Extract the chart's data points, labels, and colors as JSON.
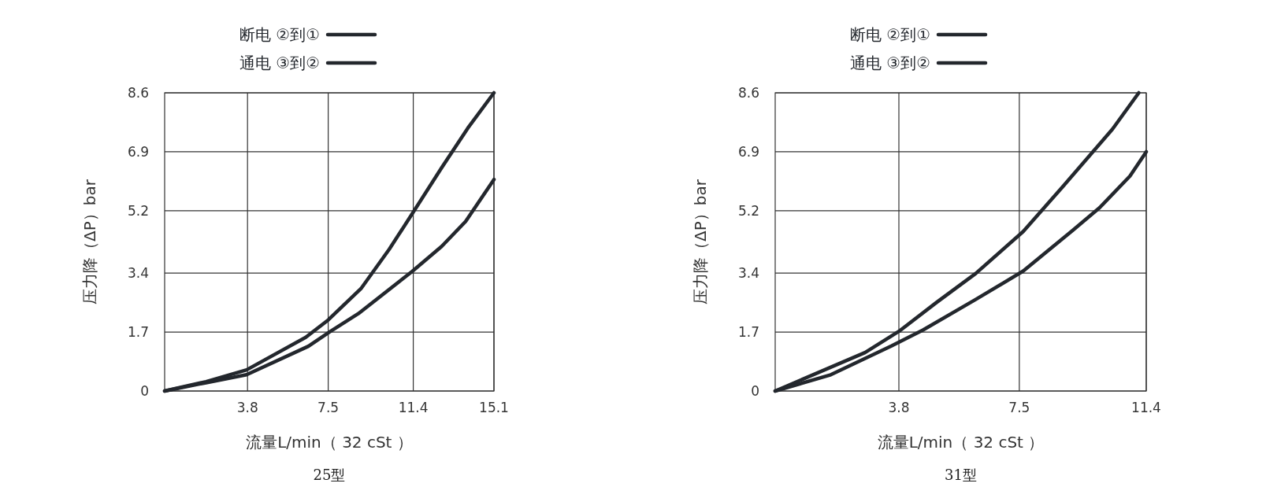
{
  "chart_data": [
    {
      "type": "line",
      "xlabel": "流量L/min（ 32 cSt ）",
      "ylabel": "压力降（ΔP）bar",
      "annotations": [
        "25型"
      ],
      "xlim": [
        0,
        15.1
      ],
      "ylim": [
        0,
        8.6
      ],
      "xticks": [
        3.8,
        7.5,
        11.4,
        15.1
      ],
      "yticks": [
        0,
        1.7,
        3.4,
        5.2,
        6.9,
        8.6
      ],
      "grid": true,
      "legend": "top",
      "series": [
        {
          "name": "断电 ②到①",
          "color": "#23272d",
          "x": [
            0,
            1.9,
            3.76,
            6.47,
            7.5,
            9.0,
            10.3,
            11.35,
            12.7,
            13.9,
            15.1
          ],
          "values": [
            0,
            0.27,
            0.61,
            1.55,
            2.05,
            2.95,
            4.09,
            5.11,
            6.44,
            7.58,
            8.6
          ]
        },
        {
          "name": "通电 ③到②",
          "color": "#23272d",
          "x": [
            0,
            1.9,
            3.76,
            6.59,
            7.55,
            8.88,
            11.35,
            12.7,
            13.8,
            15.1
          ],
          "values": [
            0,
            0.24,
            0.47,
            1.29,
            1.7,
            2.23,
            3.45,
            4.17,
            4.89,
            6.1
          ]
        }
      ]
    },
    {
      "type": "line",
      "xlabel": "流量L/min（ 32 cSt ）",
      "ylabel": "压力降（ΔP）bar",
      "annotations": [
        "31型"
      ],
      "xlim": [
        0,
        11.4
      ],
      "ylim": [
        0,
        8.6
      ],
      "xticks": [
        3.8,
        7.5,
        11.4
      ],
      "yticks": [
        0,
        1.7,
        3.4,
        5.2,
        6.9,
        8.6
      ],
      "grid": true,
      "legend": "top",
      "series": [
        {
          "name": "断电 ②到①",
          "color": "#23272d",
          "x": [
            0,
            2.76,
            3.8,
            4.95,
            6.16,
            7.62,
            8.83,
            10.36,
            11.17
          ],
          "values": [
            0,
            1.11,
            1.72,
            2.55,
            3.39,
            4.6,
            5.89,
            7.55,
            8.6
          ]
        },
        {
          "name": "通电 ③到②",
          "color": "#23272d",
          "x": [
            0,
            1.71,
            3.57,
            4.54,
            6.16,
            7.62,
            9.15,
            9.96,
            10.9,
            11.4
          ],
          "values": [
            0,
            0.47,
            1.3,
            1.76,
            2.64,
            3.46,
            4.64,
            5.28,
            6.2,
            6.9
          ]
        }
      ]
    }
  ]
}
